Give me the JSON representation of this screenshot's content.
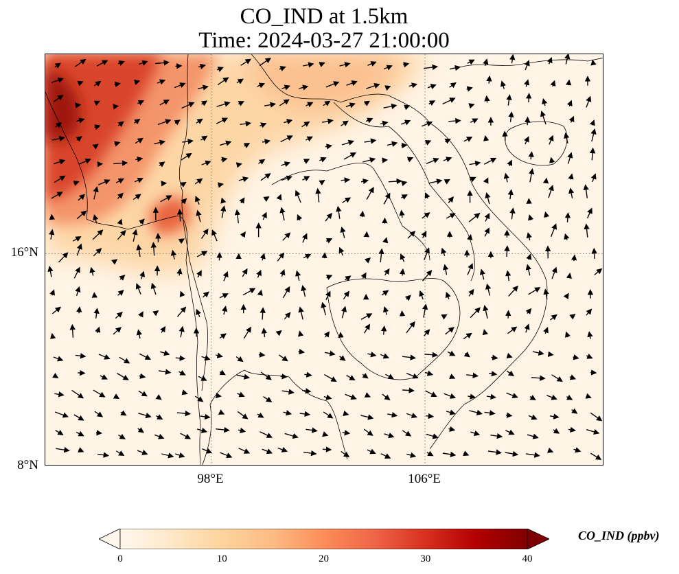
{
  "title": {
    "line1": "CO_IND at 1.5km",
    "line2": "Time: 2024-03-27 21:00:00"
  },
  "map": {
    "extent": {
      "lon_min": 91.8,
      "lon_max": 112.7,
      "lat_min": 8,
      "lat_max": 23.5
    },
    "lat_ticks": [
      {
        "value": 16,
        "label": "16°N"
      },
      {
        "value": 8,
        "label": "8°N"
      }
    ],
    "lon_ticks": [
      {
        "value": 98,
        "label": "98°E"
      },
      {
        "value": 106,
        "label": "106°E"
      }
    ],
    "gridlines": "dotted",
    "colors": {
      "land_border": "#000000",
      "gridline": "#8a7a66",
      "arrow": "#000000"
    }
  },
  "colorbar": {
    "label": "CO_IND (ppbv)",
    "ticks": [
      "0",
      "10",
      "20",
      "30",
      "40"
    ],
    "min": 0,
    "max": 40,
    "colormap": "OrRd",
    "extend": "both",
    "colors": [
      "#fff7ec",
      "#fee8c8",
      "#fdd49e",
      "#fdbb84",
      "#fc8d59",
      "#ef6548",
      "#d7301f",
      "#b30000",
      "#7f0000"
    ]
  }
}
